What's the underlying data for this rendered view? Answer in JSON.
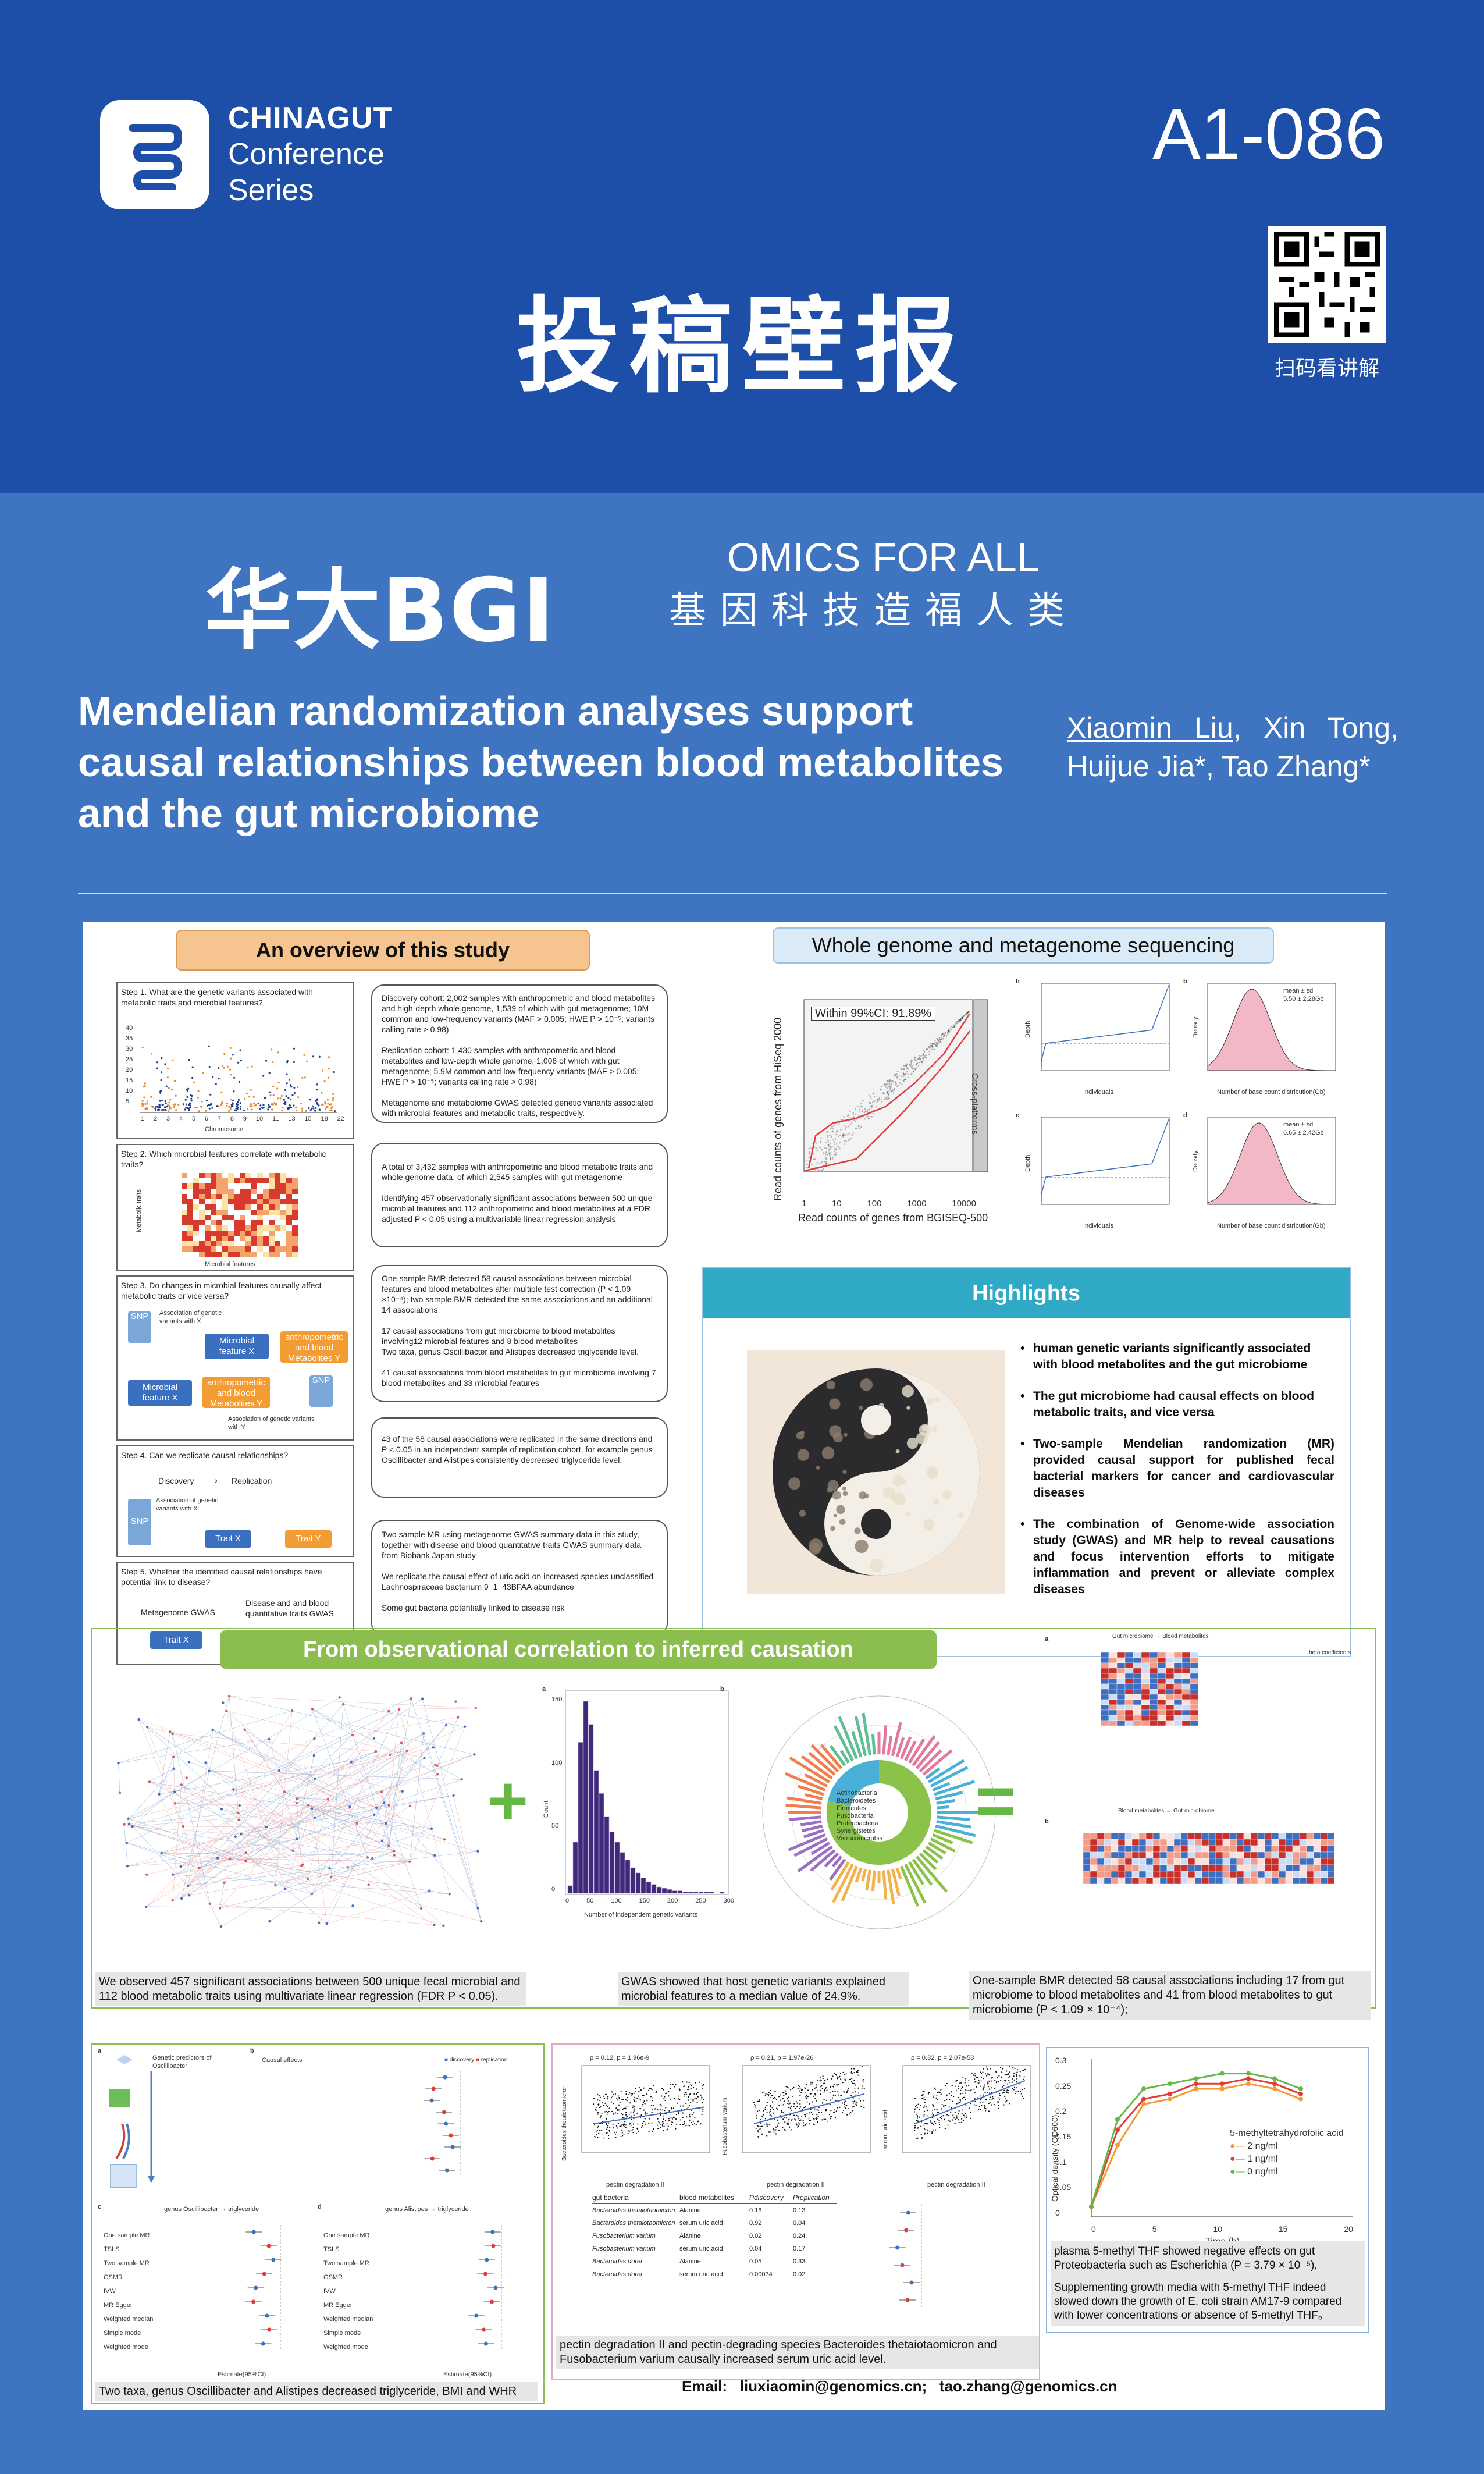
{
  "header": {
    "conference_line1": "CHINAGUT",
    "conference_line2": "Conference",
    "conference_line3": "Series",
    "poster_id": "A1-086",
    "qr_label": "扫码看讲解",
    "title": "投稿壁报"
  },
  "sponsor": {
    "brand": "华大BGI",
    "slogan_en": "OMICS FOR ALL",
    "slogan_cn": "基因科技造福人类"
  },
  "paper": {
    "title": "Mendelian randomization analyses support causal relationships between blood metabolites and the gut microbiome",
    "author_first": "Xiaomin Liu",
    "authors_rest": ", Xin Tong, Huijue Jia*, Tao Zhang*"
  },
  "overview": {
    "heading": "An overview of this study",
    "step1": "Step 1. What are the genetic variants associated with metabolic traits and microbial features?",
    "step1_axis": "Chromosome",
    "step1_y": [
      "40",
      "35",
      "30",
      "25",
      "20",
      "15",
      "10",
      "5"
    ],
    "step1_x": [
      "1",
      "2",
      "3",
      "4",
      "5",
      "6",
      "7",
      "8",
      "9",
      "10",
      "11",
      "13",
      "15",
      "18",
      "22"
    ],
    "step2": "Step 2. Which microbial features correlate with metabolic traits?",
    "step2_ylabel": "Metabolic traits",
    "step2_xlabel": "Microbial features",
    "step3": "Step 3. Do changes in microbial features causally affect metabolic traits or vice versa?",
    "step3_assoc_x": "Association of genetic variants with X",
    "step3_micro": "Microbial feature X",
    "step3_anthro": "anthropometric and blood Metabolites Y",
    "step3_assoc_y": "Association of genetic variants with Y",
    "step3_micro2": "Microbial feature X",
    "step3_anthro2": "anthropometric and blood Metabolites Y",
    "snp": "SNP",
    "step4": "Step 4. Can we replicate causal relationships?",
    "step4_discovery": "Discovery",
    "step4_replication": "Replication",
    "step4_assoc": "Association of genetic variants with X",
    "trait_x": "Trait X",
    "trait_y": "Trait Y",
    "step5": "Step 5. Whether the identified causal relationships have potential link to disease?",
    "step5_meta": "Metagenome GWAS",
    "step5_disease": "Disease and and blood quantitative traits GWAS",
    "box1": "Discovery cohort: 2,002 samples with anthropometric and blood metabolites and high-depth whole genome, 1,539 of which with gut metagenome; 10M common and low-frequency variants (MAF > 0.005; HWE P > 10⁻⁵; variants calling rate > 0.98)\n\nReplication cohort: 1,430 samples with anthropometric and blood metabolites and low-depth whole genome; 1,006 of which with gut metagenome; 5.9M common and low-frequency variants (MAF > 0.005; HWE P > 10⁻⁵; variants calling rate > 0.98)\n\nMetagenome and metabolome GWAS detected genetic variants associated with microbial features and metabolic traits, respectively.",
    "box2": "A total of 3,432 samples with anthropometric and blood metabolic traits and whole genome data, of which 2,545 samples with gut metagenome\n\nIdentifying 457 observationally significant associations between 500 unique microbial features and 112 anthropometric and blood metabolites at a FDR adjusted P < 0.05 using a multivariable linear regression analysis",
    "box3": "One sample BMR detected 58 causal associations between microbial features and blood metabolites after multiple test correction (P < 1.09 ×10⁻⁴); two sample BMR detected the same associations and an additional 14 associations\n\n17 causal associations from gut microbiome to blood metabolites involving12 microbial features and 8 blood metabolites\nTwo taxa, genus Oscillibacter and Alistipes decreased triglyceride level.\n\n41 causal associations from blood metabolites to gut microbiome involving 7 blood metabolites and 33 microbial features",
    "box4": "43 of the 58 causal associations were replicated in the same directions and P < 0.05 in an independent sample of replication cohort, for example genus Oscillibacter and Alistipes consistently decreased triglyceride level.",
    "box5": "Two sample MR using metagenome GWAS summary data in this study, together with disease and blood quantitative traits GWAS summary data from Biobank Japan study\n\nWe replicate the causal effect of uric acid on increased species unclassified Lachnospiraceae bacterium 9_1_43BFAA abundance\n\nSome gut bacteria potentially linked to disease risk"
  },
  "sequencing": {
    "heading": "Whole genome and metagenome sequencing",
    "within": "Within 99%CI: 91.89%",
    "xlabel": "Read counts of genes from BGISEQ-500",
    "ylabel": "Read counts of genes from HiSeq 2000",
    "side_label": "Cross-platforms",
    "ticks": [
      "1",
      "10",
      "100",
      "1000",
      "10000"
    ],
    "panel_b_stats": "mean ± sd\n5.50 ± 2.28Gb",
    "panel_d_stats": "mean ± sd\n6.65 ± 2.42Gb",
    "xlabel_left": "Individuals",
    "xlabel_right": "Number of base count distribution(Gb)",
    "ylabel_depth": "Depth",
    "ylabel_density": "Density",
    "panel_letters": [
      "a",
      "b",
      "c",
      "d"
    ]
  },
  "highlights": {
    "heading": "Highlights",
    "items": [
      "human genetic variants significantly associated with blood metabolites and the gut microbiome",
      "The gut microbiome had causal effects on blood metabolic traits, and vice versa",
      "Two-sample Mendelian randomization (MR) provided causal support for published fecal bacterial markers for cancer and cardiovascular diseases",
      "The combination of Genome-wide association study (GWAS) and MR help to reveal causations and focus intervention efforts to mitigate inflammation and prevent or alleviate complex diseases"
    ]
  },
  "correlation": {
    "heading": "From observational correlation to inferred causation",
    "plus": "+",
    "equals": "=",
    "caption_network": "We observed 457 significant associations between 500 unique fecal microbial and 112 blood metabolic traits using multivariate linear regression (FDR P < 0.05).",
    "caption_gwas": "GWAS showed that host genetic variants explained microbial features to a median value of 24.9%.",
    "caption_bmr": "One-sample BMR detected 58 causal associations including 17 from gut microbiome to blood metabolites and 41 from blood metabolites to gut microbiome (P < 1.09 × 10⁻⁴);",
    "histogram": {
      "letter": "a",
      "xlabel": "Number of independent genetic variants",
      "ylabel": "Count",
      "yticks": [
        "150",
        "100",
        "50",
        "0"
      ],
      "xticks": [
        "0",
        "50",
        "100",
        "150",
        "200",
        "250",
        "300"
      ]
    },
    "circle_letter": "b",
    "circle_legend": [
      "Actinobacteria",
      "Bacteroidetes",
      "Firmicutes",
      "Fusobacteria",
      "Proteobacteria",
      "Synergistetes",
      "Verrucomicrobia"
    ],
    "heatmap_letters": [
      "a",
      "b"
    ],
    "heatmap_header_a": "Gut microbiome → Blood metabolites",
    "heatmap_header_b": "Blood metabolites → Gut microbiome",
    "heatmap_legend": "beta coefficients"
  },
  "bottom": {
    "forest_caption": "Two taxa, genus Oscillibacter and Alistipes decreased triglyceride, BMI and WHR",
    "forest_letters": [
      "a",
      "b",
      "c",
      "d"
    ],
    "forest_a_title": "Genetic predictors of Oscillibacter",
    "forest_b_title": "Causal effects",
    "forest_c_title": "genus Oscillibacter → triglyceride",
    "forest_d_title": "genus Alistipes → triglyceride",
    "methods": [
      "One sample MR",
      "TSLS",
      "Two sample MR",
      "GSMR",
      "IVW",
      "MR Egger",
      "Weighted median",
      "Simple mode",
      "Weighted mode"
    ],
    "legend_discovery": "discovery",
    "legend_replication": "replication",
    "forest_xlabel": "Estimate(95%CI)",
    "scatter_stats": [
      "ρ = 0.12, p = 1.96e-9",
      "ρ = 0.21, p = 1.97e-26",
      "ρ = 0.32, p = 2.07e-58"
    ],
    "scatter_x": "pectin degradation II",
    "scatter_y": [
      "Bacteroides thetaiotaomicron",
      "Fusobacterium varium",
      "serum uric acid"
    ],
    "table_headers": [
      "gut bacteria",
      "blood metabolites",
      "Pdiscovery",
      "Preplication"
    ],
    "table_rows": [
      [
        "Bacteroides thetaiotaomicron",
        "Alanine",
        "0.16",
        "0.13"
      ],
      [
        "Bacteroides thetaiotaomicron",
        "serum uric acid",
        "0.92",
        "0.04"
      ],
      [
        "Fusobacterium varium",
        "Alanine",
        "0.02",
        "0.24"
      ],
      [
        "Fusobacterium varium",
        "serum uric acid",
        "0.04",
        "0.17"
      ],
      [
        "Bacteroides dorei",
        "Alanine",
        "0.05",
        "0.33"
      ],
      [
        "Bacteroides dorei",
        "serum uric acid",
        "0.00034",
        "0.02"
      ]
    ],
    "pectin_caption": "pectin degradation II and pectin-degrading species Bacteroides thetaiotaomicron and Fusobacterium varium causally increased serum uric acid level.",
    "growth_legend_title": "5-methyltetrahydrofolic acid",
    "growth_legend": [
      "2 ng/ml",
      "1 ng/ml",
      "0 ng/ml"
    ],
    "growth_xlabel": "Time (h)",
    "growth_ylabel": "Optical density (OD600)",
    "growth_yticks": [
      "0.3",
      "0.25",
      "0.2",
      "0.15",
      "0.1",
      "0.05",
      "0"
    ],
    "growth_xticks": [
      "0",
      "5",
      "10",
      "15",
      "20"
    ],
    "thf_caption1": "plasma 5-methyl THF showed negative effects on gut Proteobacteria such as Escherichia  (P = 3.79 × 10⁻⁵),",
    "thf_caption2": "Supplementing growth media with 5-methyl THF indeed slowed down the growth of E. coli strain AM17-9 compared with lower concentrations or absence of 5-methyl THF。"
  },
  "contact": {
    "label": "Email:",
    "email1": "liuxiaomin@genomics.cn;",
    "email2": "tao.zhang@genomics.cn"
  },
  "colors": {
    "header_blue": "#1e4fa8",
    "body_blue": "#3f75c0",
    "overview_orange": "#f6c58f",
    "sequencing_blue": "#dbeaf7",
    "highlight_teal": "#2fa9c5",
    "green_pill": "#8bbd4f",
    "line_red": "#e03b3b",
    "line_orange": "#f39c34",
    "line_green": "#66b845"
  }
}
